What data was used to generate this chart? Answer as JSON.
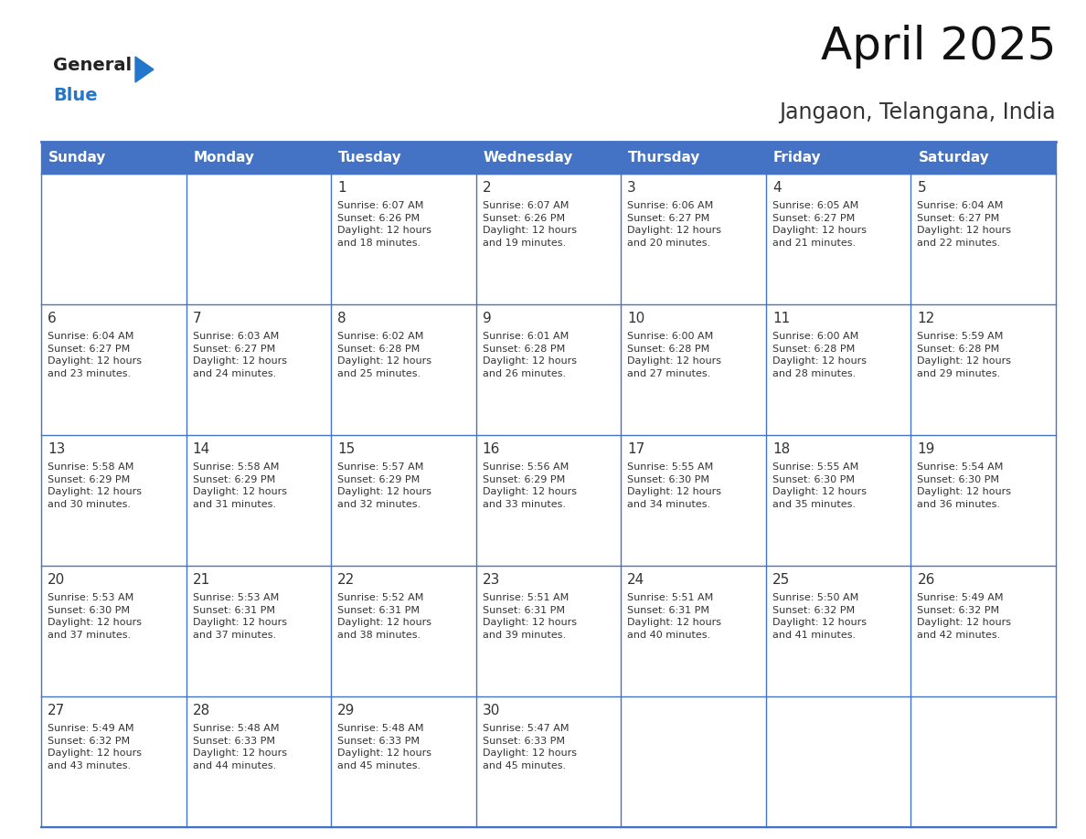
{
  "title": "April 2025",
  "subtitle": "Jangaon, Telangana, India",
  "header_bg_color": "#4472C4",
  "header_text_color": "#FFFFFF",
  "header_days": [
    "Sunday",
    "Monday",
    "Tuesday",
    "Wednesday",
    "Thursday",
    "Friday",
    "Saturday"
  ],
  "border_color": "#4472C4",
  "text_color": "#333333",
  "weeks": [
    [
      {
        "day": null,
        "info": null
      },
      {
        "day": null,
        "info": null
      },
      {
        "day": 1,
        "info": "Sunrise: 6:07 AM\nSunset: 6:26 PM\nDaylight: 12 hours\nand 18 minutes."
      },
      {
        "day": 2,
        "info": "Sunrise: 6:07 AM\nSunset: 6:26 PM\nDaylight: 12 hours\nand 19 minutes."
      },
      {
        "day": 3,
        "info": "Sunrise: 6:06 AM\nSunset: 6:27 PM\nDaylight: 12 hours\nand 20 minutes."
      },
      {
        "day": 4,
        "info": "Sunrise: 6:05 AM\nSunset: 6:27 PM\nDaylight: 12 hours\nand 21 minutes."
      },
      {
        "day": 5,
        "info": "Sunrise: 6:04 AM\nSunset: 6:27 PM\nDaylight: 12 hours\nand 22 minutes."
      }
    ],
    [
      {
        "day": 6,
        "info": "Sunrise: 6:04 AM\nSunset: 6:27 PM\nDaylight: 12 hours\nand 23 minutes."
      },
      {
        "day": 7,
        "info": "Sunrise: 6:03 AM\nSunset: 6:27 PM\nDaylight: 12 hours\nand 24 minutes."
      },
      {
        "day": 8,
        "info": "Sunrise: 6:02 AM\nSunset: 6:28 PM\nDaylight: 12 hours\nand 25 minutes."
      },
      {
        "day": 9,
        "info": "Sunrise: 6:01 AM\nSunset: 6:28 PM\nDaylight: 12 hours\nand 26 minutes."
      },
      {
        "day": 10,
        "info": "Sunrise: 6:00 AM\nSunset: 6:28 PM\nDaylight: 12 hours\nand 27 minutes."
      },
      {
        "day": 11,
        "info": "Sunrise: 6:00 AM\nSunset: 6:28 PM\nDaylight: 12 hours\nand 28 minutes."
      },
      {
        "day": 12,
        "info": "Sunrise: 5:59 AM\nSunset: 6:28 PM\nDaylight: 12 hours\nand 29 minutes."
      }
    ],
    [
      {
        "day": 13,
        "info": "Sunrise: 5:58 AM\nSunset: 6:29 PM\nDaylight: 12 hours\nand 30 minutes."
      },
      {
        "day": 14,
        "info": "Sunrise: 5:58 AM\nSunset: 6:29 PM\nDaylight: 12 hours\nand 31 minutes."
      },
      {
        "day": 15,
        "info": "Sunrise: 5:57 AM\nSunset: 6:29 PM\nDaylight: 12 hours\nand 32 minutes."
      },
      {
        "day": 16,
        "info": "Sunrise: 5:56 AM\nSunset: 6:29 PM\nDaylight: 12 hours\nand 33 minutes."
      },
      {
        "day": 17,
        "info": "Sunrise: 5:55 AM\nSunset: 6:30 PM\nDaylight: 12 hours\nand 34 minutes."
      },
      {
        "day": 18,
        "info": "Sunrise: 5:55 AM\nSunset: 6:30 PM\nDaylight: 12 hours\nand 35 minutes."
      },
      {
        "day": 19,
        "info": "Sunrise: 5:54 AM\nSunset: 6:30 PM\nDaylight: 12 hours\nand 36 minutes."
      }
    ],
    [
      {
        "day": 20,
        "info": "Sunrise: 5:53 AM\nSunset: 6:30 PM\nDaylight: 12 hours\nand 37 minutes."
      },
      {
        "day": 21,
        "info": "Sunrise: 5:53 AM\nSunset: 6:31 PM\nDaylight: 12 hours\nand 37 minutes."
      },
      {
        "day": 22,
        "info": "Sunrise: 5:52 AM\nSunset: 6:31 PM\nDaylight: 12 hours\nand 38 minutes."
      },
      {
        "day": 23,
        "info": "Sunrise: 5:51 AM\nSunset: 6:31 PM\nDaylight: 12 hours\nand 39 minutes."
      },
      {
        "day": 24,
        "info": "Sunrise: 5:51 AM\nSunset: 6:31 PM\nDaylight: 12 hours\nand 40 minutes."
      },
      {
        "day": 25,
        "info": "Sunrise: 5:50 AM\nSunset: 6:32 PM\nDaylight: 12 hours\nand 41 minutes."
      },
      {
        "day": 26,
        "info": "Sunrise: 5:49 AM\nSunset: 6:32 PM\nDaylight: 12 hours\nand 42 minutes."
      }
    ],
    [
      {
        "day": 27,
        "info": "Sunrise: 5:49 AM\nSunset: 6:32 PM\nDaylight: 12 hours\nand 43 minutes."
      },
      {
        "day": 28,
        "info": "Sunrise: 5:48 AM\nSunset: 6:33 PM\nDaylight: 12 hours\nand 44 minutes."
      },
      {
        "day": 29,
        "info": "Sunrise: 5:48 AM\nSunset: 6:33 PM\nDaylight: 12 hours\nand 45 minutes."
      },
      {
        "day": 30,
        "info": "Sunrise: 5:47 AM\nSunset: 6:33 PM\nDaylight: 12 hours\nand 45 minutes."
      },
      {
        "day": null,
        "info": null
      },
      {
        "day": null,
        "info": null
      },
      {
        "day": null,
        "info": null
      }
    ]
  ],
  "logo_general_color": "#222222",
  "logo_blue_color": "#2277CC",
  "logo_triangle_color": "#2277CC",
  "title_fontsize": 36,
  "subtitle_fontsize": 17,
  "dow_fontsize": 11,
  "day_num_fontsize": 11,
  "info_fontsize": 8
}
